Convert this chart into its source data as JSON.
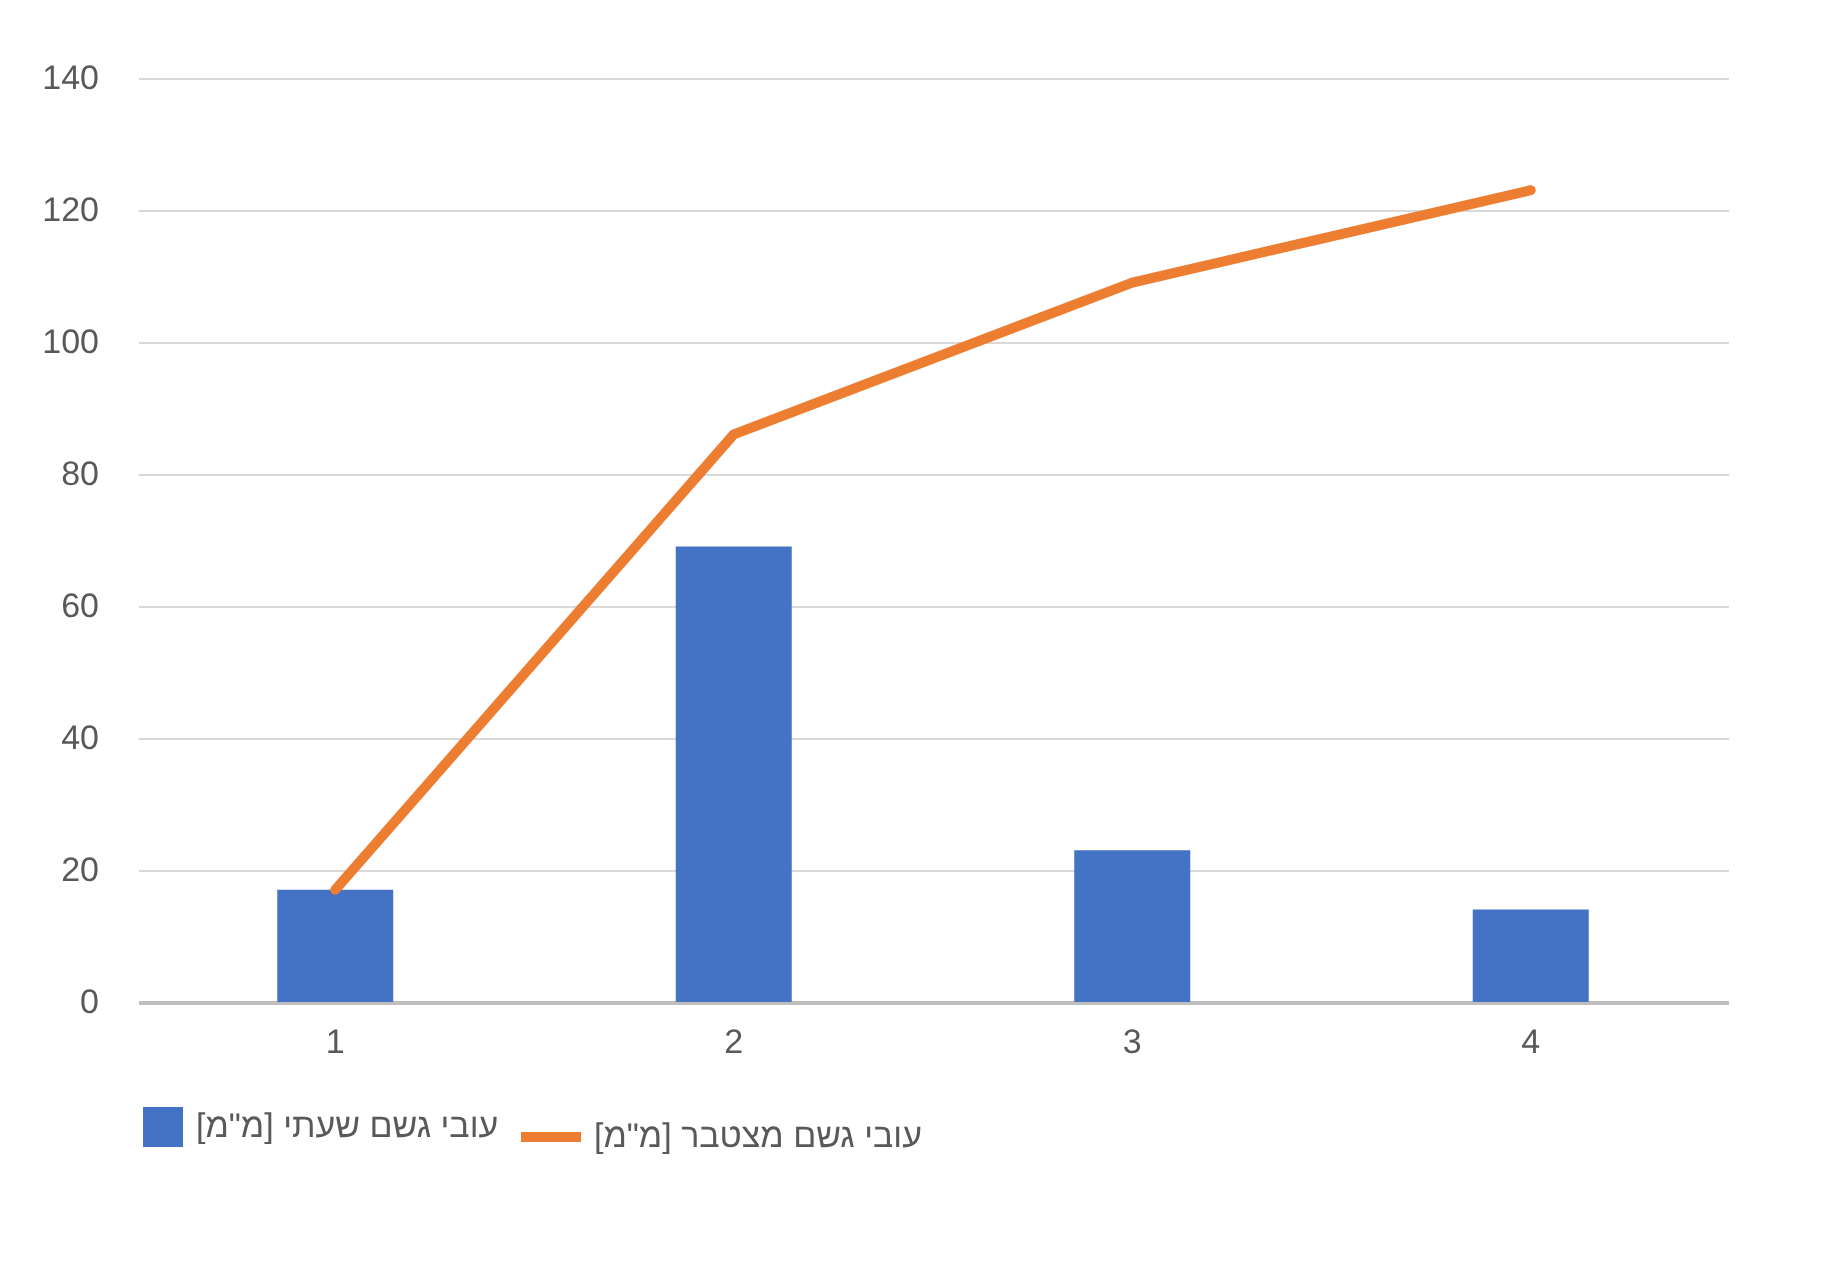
{
  "chart_data": {
    "type": "bar",
    "categories": [
      "1",
      "2",
      "3",
      "4"
    ],
    "series": [
      {
        "name": "עובי גשם שעתי [מ\"מ]",
        "color": "#4472c4",
        "values": [
          17,
          69,
          23,
          14
        ]
      },
      {
        "name": "עובי גשם מצטבר [מ\"מ]",
        "type": "line",
        "color": "#ed7d31",
        "values": [
          17,
          86,
          109,
          123
        ]
      }
    ],
    "ylim": [
      0,
      140
    ],
    "yticks": [
      0,
      20,
      40,
      60,
      80,
      100,
      120,
      140
    ],
    "grid": "y",
    "legend": "bottom"
  }
}
